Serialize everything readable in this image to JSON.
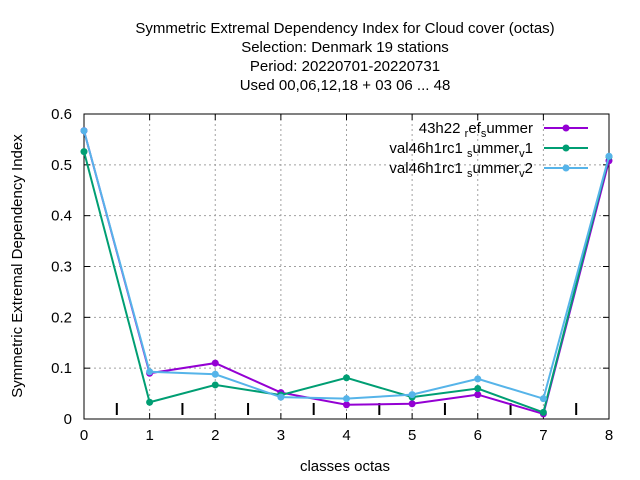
{
  "chart_data": {
    "type": "line",
    "title_lines": [
      "Symmetric Extremal Dependency Index  for Cloud cover (octas)",
      "Selection: Denmark     19 stations",
      "Period: 20220701-20220731",
      "Used  00,06,12,18  + 03 06 ... 48"
    ],
    "xlabel": "classes octas",
    "ylabel": "Symmetric Extremal Dependency Index",
    "xlim": [
      0,
      8
    ],
    "ylim": [
      0,
      0.6
    ],
    "x_ticks": [
      "0",
      "1",
      "2",
      "3",
      "4",
      "5",
      "6",
      "7",
      "8"
    ],
    "y_ticks": [
      "0",
      "0.1",
      "0.2",
      "0.3",
      "0.4",
      "0.5",
      "0.6"
    ],
    "minor_x_ticks": [
      0.5,
      1.5,
      2.5,
      3.5,
      4.5,
      5.5,
      6.5,
      7.5
    ],
    "grid": true,
    "legend_position": "top-right",
    "x": [
      0,
      1,
      2,
      3,
      4,
      5,
      6,
      7,
      8
    ],
    "series": [
      {
        "name": "43h22 ref summer",
        "label_parts": [
          {
            "t": "43h22 ",
            "sub": false
          },
          {
            "t": "r",
            "sub": true
          },
          {
            "t": "ef",
            "sub": false
          },
          {
            "t": "s",
            "sub": true
          },
          {
            "t": "ummer",
            "sub": false
          }
        ],
        "color": "#9400d3",
        "values": [
          0.567,
          0.09,
          0.11,
          0.052,
          0.028,
          0.03,
          0.048,
          0.01,
          0.508
        ]
      },
      {
        "name": "val46h1rc1 summer v1",
        "label_parts": [
          {
            "t": "val46h1rc1 ",
            "sub": false
          },
          {
            "t": "s",
            "sub": true
          },
          {
            "t": "ummer",
            "sub": false
          },
          {
            "t": "v",
            "sub": true
          },
          {
            "t": "1",
            "sub": false
          }
        ],
        "color": "#009e73",
        "values": [
          0.526,
          0.033,
          0.067,
          0.047,
          0.081,
          0.043,
          0.06,
          0.013,
          0.516
        ]
      },
      {
        "name": "val46h1rc1 summer v2",
        "label_parts": [
          {
            "t": "val46h1rc1 ",
            "sub": false
          },
          {
            "t": "s",
            "sub": true
          },
          {
            "t": "ummer",
            "sub": false
          },
          {
            "t": "v",
            "sub": true
          },
          {
            "t": "2",
            "sub": false
          }
        ],
        "color": "#56b4e9",
        "values": [
          0.567,
          0.093,
          0.088,
          0.043,
          0.04,
          0.048,
          0.079,
          0.04,
          0.517
        ]
      }
    ]
  }
}
